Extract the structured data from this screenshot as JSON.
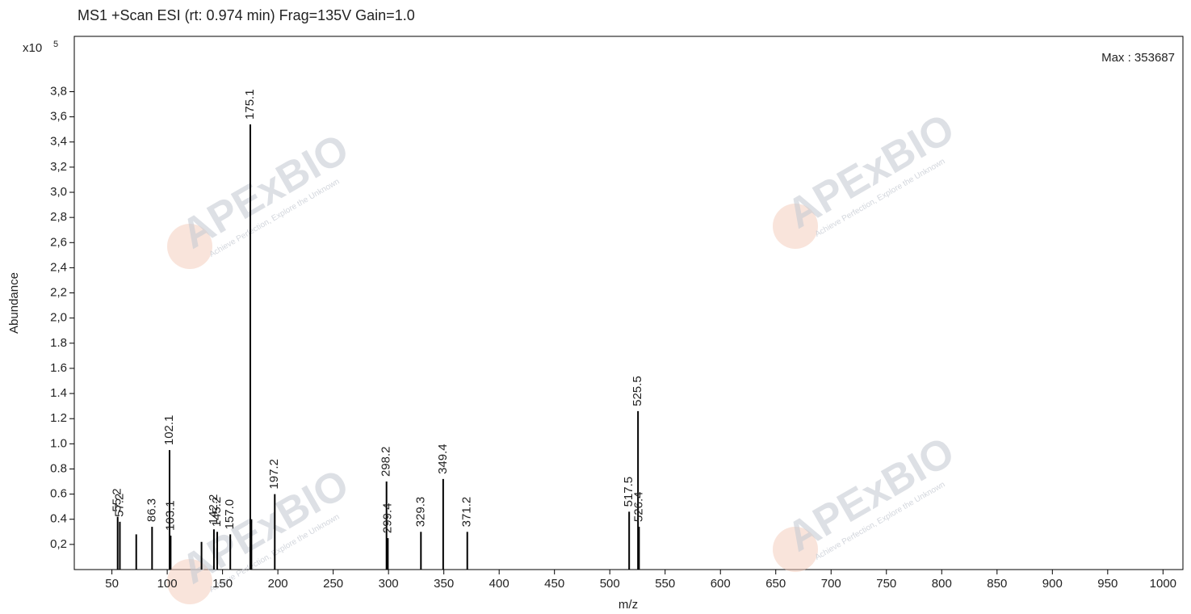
{
  "chart_data": {
    "type": "stem",
    "title": "MS1 +Scan ESI (rt: 0.974 min) Frag=135V Gain=1.0",
    "x_label": "m/z",
    "y_label": "Abundance",
    "y_multiplier": "x10",
    "y_exponent": "5",
    "annotation": "Max : 353687",
    "watermark": {
      "text": "APExBIO",
      "tagline": "Achieve Perfection, Explore the Unknown"
    },
    "color": "#000000",
    "x": [
      55.2,
      57.2,
      72.0,
      86.3,
      102.1,
      103.1,
      131.0,
      142.2,
      145.2,
      157.0,
      175.1,
      176.1,
      197.2,
      298.2,
      299.4,
      329.3,
      349.4,
      371.2,
      517.5,
      525.5,
      526.4
    ],
    "values": [
      0.42,
      0.38,
      0.28,
      0.34,
      0.95,
      0.27,
      0.22,
      0.32,
      0.3,
      0.28,
      3.54,
      0.4,
      0.6,
      0.7,
      0.25,
      0.3,
      0.72,
      0.3,
      0.46,
      1.26,
      0.34
    ],
    "x_labels": [
      "55.2",
      "57.2",
      null,
      "86.3",
      "102.1",
      "103.1",
      null,
      "142.2",
      "145.2",
      "157.0",
      "175.1",
      null,
      "197.2",
      "298.2",
      "299.4",
      "329.3",
      "349.4",
      "371.2",
      "517.5",
      "525.5",
      "526.4"
    ],
    "xlim": [
      16,
      1018
    ],
    "ylim": [
      0,
      4.24
    ],
    "xticks": [
      50,
      100,
      150,
      200,
      250,
      300,
      350,
      400,
      450,
      500,
      550,
      600,
      650,
      700,
      750,
      800,
      850,
      900,
      950,
      1000
    ],
    "yticks": [
      {
        "value": 0.2,
        "label": "0,2"
      },
      {
        "value": 0.4,
        "label": "0.4"
      },
      {
        "value": 0.6,
        "label": "0.6"
      },
      {
        "value": 0.8,
        "label": "0.8"
      },
      {
        "value": 1.0,
        "label": "1.0"
      },
      {
        "value": 1.2,
        "label": "1.2"
      },
      {
        "value": 1.4,
        "label": "1.4"
      },
      {
        "value": 1.6,
        "label": "1.6"
      },
      {
        "value": 1.8,
        "label": "1.8"
      },
      {
        "value": 2.0,
        "label": "2,0"
      },
      {
        "value": 2.2,
        "label": "2,2"
      },
      {
        "value": 2.4,
        "label": "2,4"
      },
      {
        "value": 2.6,
        "label": "2,6"
      },
      {
        "value": 2.8,
        "label": "2,8"
      },
      {
        "value": 3.0,
        "label": "3,0"
      },
      {
        "value": 3.2,
        "label": "3,2"
      },
      {
        "value": 3.4,
        "label": "3,4"
      },
      {
        "value": 3.6,
        "label": "3,6"
      },
      {
        "value": 3.8,
        "label": "3,8"
      }
    ]
  }
}
